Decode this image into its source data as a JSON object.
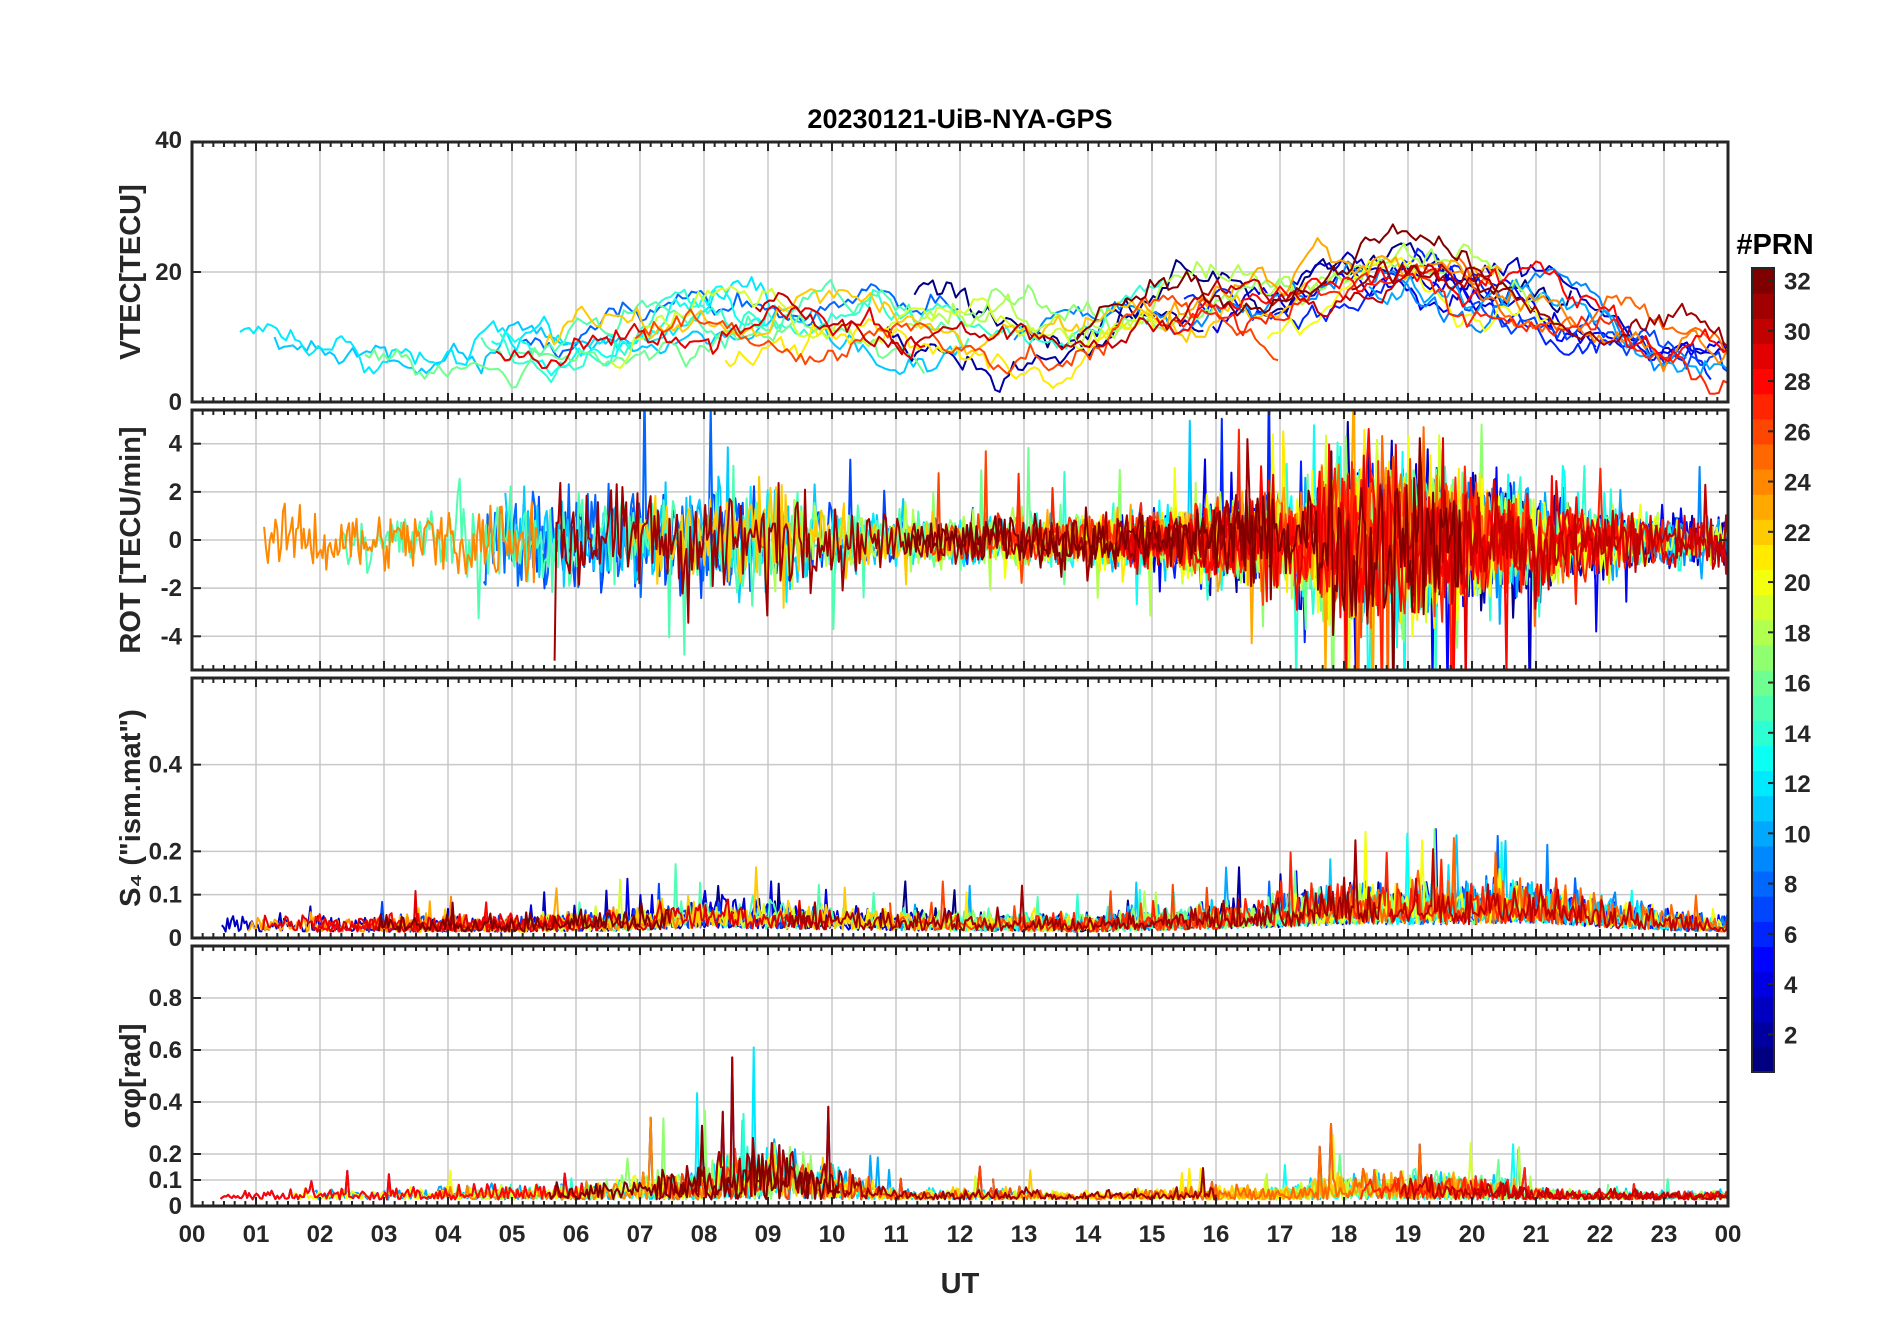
{
  "chart_data": {
    "type": "line",
    "title": "20230121-UiB-NYA-GPS",
    "xlabel": "UT",
    "x_ticks": [
      "00",
      "01",
      "02",
      "03",
      "04",
      "05",
      "06",
      "07",
      "08",
      "09",
      "10",
      "11",
      "12",
      "13",
      "14",
      "15",
      "16",
      "17",
      "18",
      "19",
      "20",
      "21",
      "22",
      "23",
      "00"
    ],
    "xlim_hours": [
      0,
      24
    ],
    "grid": true,
    "colorbar": {
      "title": "#PRN",
      "range": [
        1,
        32
      ],
      "ticks": [
        "2",
        "4",
        "6",
        "8",
        "10",
        "12",
        "14",
        "16",
        "18",
        "20",
        "22",
        "24",
        "26",
        "28",
        "30",
        "32"
      ],
      "colormap": "jet",
      "placement": "right"
    },
    "panels": [
      {
        "ylabel": "VTEC[TECU]",
        "ylim": [
          0,
          40
        ],
        "yticks": [
          "0",
          "20",
          "40"
        ],
        "activity": [
          [
            0,
            6
          ],
          [
            1,
            9
          ],
          [
            2,
            8
          ],
          [
            3,
            8
          ],
          [
            4,
            9
          ],
          [
            5,
            9
          ],
          [
            6,
            8
          ],
          [
            7,
            10
          ],
          [
            8,
            12
          ],
          [
            9,
            13
          ],
          [
            10,
            12
          ],
          [
            11,
            11
          ],
          [
            12,
            11
          ],
          [
            13,
            10
          ],
          [
            14,
            10
          ],
          [
            15,
            13
          ],
          [
            16,
            15
          ],
          [
            17,
            14
          ],
          [
            18,
            18
          ],
          [
            19,
            20
          ],
          [
            20,
            16
          ],
          [
            21,
            16
          ],
          [
            22,
            12
          ],
          [
            23,
            7
          ],
          [
            24,
            6
          ]
        ]
      },
      {
        "ylabel": "ROT [TECU/min]",
        "ylim": [
          -5.4,
          5.4
        ],
        "yticks": [
          "-4",
          "-2",
          "0",
          "2",
          "4"
        ],
        "activity": [
          [
            0,
            1.2
          ],
          [
            3,
            1.0
          ],
          [
            5,
            1.6
          ],
          [
            6,
            1.8
          ],
          [
            8,
            1.8
          ],
          [
            9,
            2.0
          ],
          [
            10,
            1.2
          ],
          [
            11,
            0.8
          ],
          [
            13,
            0.9
          ],
          [
            15,
            1.0
          ],
          [
            16,
            1.5
          ],
          [
            17,
            1.6
          ],
          [
            18,
            3.0
          ],
          [
            19,
            3.2
          ],
          [
            20,
            2.0
          ],
          [
            21,
            1.6
          ],
          [
            22,
            1.2
          ],
          [
            23,
            0.9
          ],
          [
            24,
            0.9
          ]
        ]
      },
      {
        "ylabel": "S₄ (\"ism.mat\")",
        "ylim": [
          0,
          0.6
        ],
        "yticks": [
          "0",
          "0.1",
          "0.2",
          "0.4"
        ],
        "activity": [
          [
            0,
            0.04
          ],
          [
            3,
            0.04
          ],
          [
            5,
            0.04
          ],
          [
            7,
            0.05
          ],
          [
            8,
            0.07
          ],
          [
            9,
            0.06
          ],
          [
            11,
            0.05
          ],
          [
            14,
            0.04
          ],
          [
            16,
            0.06
          ],
          [
            17,
            0.07
          ],
          [
            18,
            0.09
          ],
          [
            19,
            0.09
          ],
          [
            20,
            0.09
          ],
          [
            21,
            0.1
          ],
          [
            22,
            0.07
          ],
          [
            23,
            0.05
          ],
          [
            24,
            0.04
          ]
        ]
      },
      {
        "ylabel": "σφ[rad]",
        "ylim": [
          0,
          1
        ],
        "yticks": [
          "0",
          "0.1",
          "0.2",
          "0.4",
          "0.6",
          "0.8"
        ],
        "activity": [
          [
            0,
            0.05
          ],
          [
            3,
            0.05
          ],
          [
            4,
            0.07
          ],
          [
            6,
            0.08
          ],
          [
            7,
            0.12
          ],
          [
            8,
            0.18
          ],
          [
            9,
            0.28
          ],
          [
            10,
            0.18
          ],
          [
            11,
            0.05
          ],
          [
            12,
            0.06
          ],
          [
            14,
            0.04
          ],
          [
            16,
            0.07
          ],
          [
            17,
            0.06
          ],
          [
            18,
            0.14
          ],
          [
            19,
            0.14
          ],
          [
            20,
            0.12
          ],
          [
            21,
            0.07
          ],
          [
            22,
            0.05
          ],
          [
            24,
            0.05
          ]
        ]
      }
    ]
  }
}
